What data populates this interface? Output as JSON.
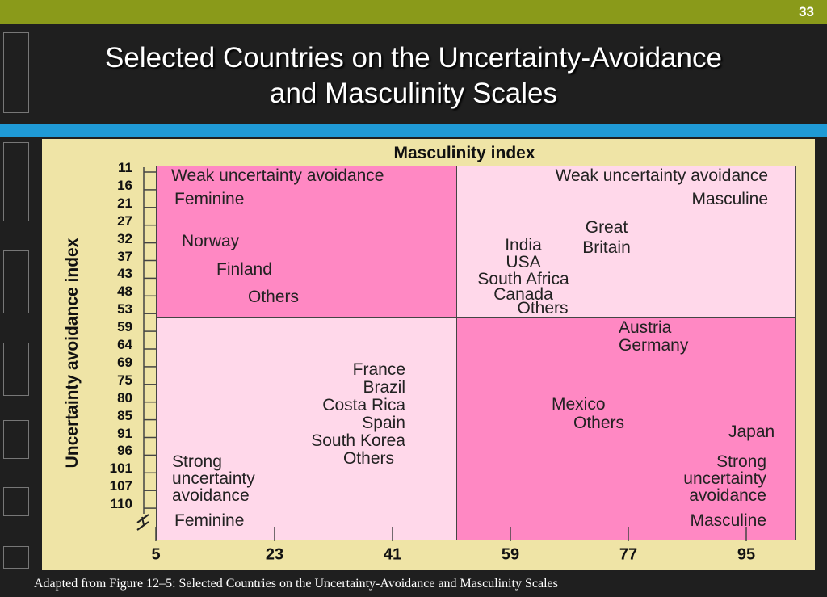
{
  "slide_number": "33",
  "title_line1": "Selected Countries on the Uncertainty-Avoidance",
  "title_line2": "and Masculinity Scales",
  "caption": "Adapted from Figure 12–5: Selected Countries on the Uncertainty-Avoidance and Masculinity Scales",
  "colors": {
    "dark_pink": "#ff88c3",
    "light_pink": "#ffd8ea",
    "panel": "#efe4a6",
    "top_bar": "#8a9a1a",
    "blue_bar": "#1f9ad6"
  },
  "axes": {
    "x_title": "Masculinity index",
    "y_title": "Uncertainty avoidance index",
    "y_ticks": [
      "11",
      "16",
      "21",
      "27",
      "32",
      "37",
      "43",
      "48",
      "53",
      "59",
      "64",
      "69",
      "75",
      "80",
      "85",
      "91",
      "96",
      "101",
      "107",
      "110"
    ],
    "x_ticks": [
      "5",
      "23",
      "41",
      "59",
      "77",
      "95"
    ]
  },
  "quadrants": {
    "top_left": {
      "line1": "Weak uncertainty avoidance",
      "line2": "Feminine",
      "countries": [
        "Norway",
        "Finland",
        "Others"
      ]
    },
    "top_right": {
      "line1": "Weak uncertainty avoidance",
      "line2": "Masculine",
      "countries": [
        "Great",
        "Britain",
        "India",
        "USA",
        "South Africa",
        "Canada",
        "Others"
      ]
    },
    "bottom_left": {
      "line1": "Strong",
      "line2": "uncertainty",
      "line3": "avoidance",
      "line4": "Feminine",
      "countries": [
        "France",
        "Brazil",
        "Costa Rica",
        "Spain",
        "South Korea",
        "Others"
      ]
    },
    "bottom_right": {
      "line1": "Strong",
      "line2": "uncertainty",
      "line3": "avoidance",
      "line4": "Masculine",
      "countries": [
        "Austria",
        "Germany",
        "Mexico",
        "Others",
        "Japan"
      ]
    }
  }
}
